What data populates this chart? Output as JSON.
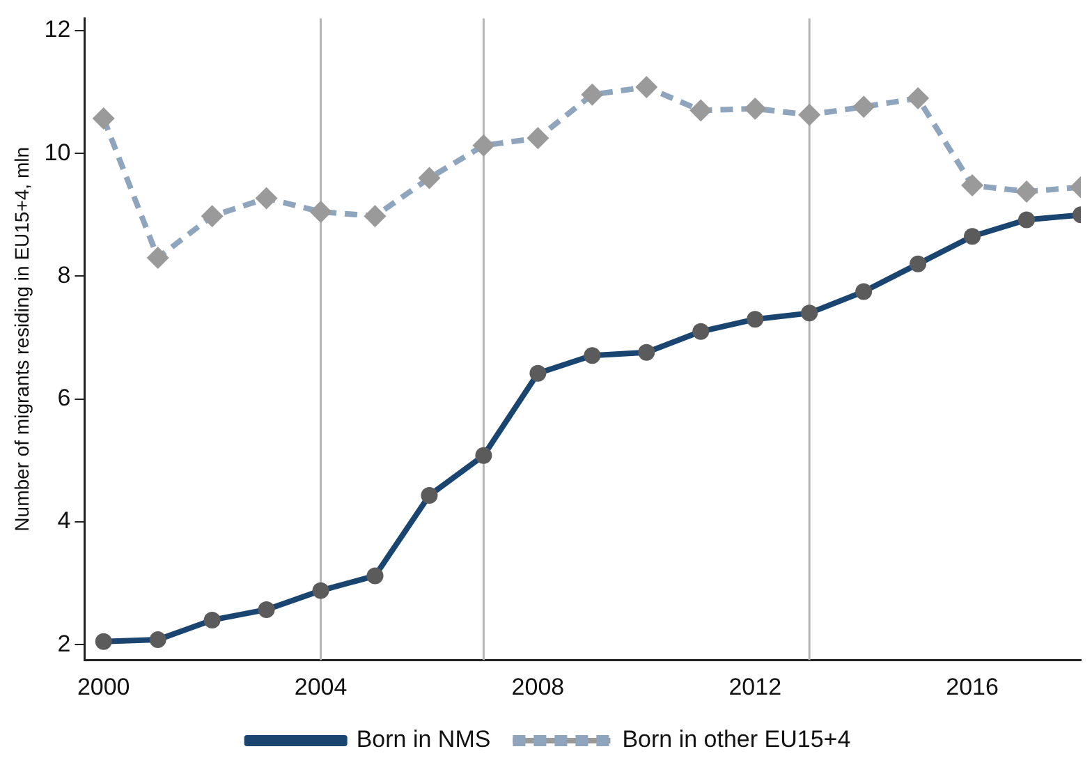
{
  "chart_data": {
    "type": "line",
    "ylabel": "Number of migrants residing in EU15+4, mln",
    "x": [
      2000,
      2001,
      2002,
      2003,
      2004,
      2005,
      2006,
      2007,
      2008,
      2009,
      2010,
      2011,
      2012,
      2013,
      2014,
      2015,
      2016,
      2017,
      2018
    ],
    "series": [
      {
        "name": "Born in NMS",
        "color": "#1a4571",
        "marker": "circle",
        "line_style": "solid",
        "values": [
          2.05,
          2.08,
          2.4,
          2.57,
          2.88,
          3.12,
          4.43,
          5.08,
          6.42,
          6.71,
          6.76,
          7.1,
          7.3,
          7.4,
          7.75,
          8.2,
          8.65,
          8.92,
          9.0
        ]
      },
      {
        "name": "Born in other EU15+4",
        "color": "#8fa5bd",
        "marker": "diamond",
        "line_style": "dashed",
        "values": [
          10.57,
          8.3,
          8.98,
          9.27,
          9.05,
          8.98,
          9.6,
          10.13,
          10.25,
          10.96,
          11.08,
          10.7,
          10.73,
          10.63,
          10.76,
          10.9,
          9.48,
          9.38,
          9.45
        ]
      }
    ],
    "xlim": [
      1999.65,
      2018
    ],
    "xticks": [
      2000,
      2004,
      2008,
      2012,
      2016
    ],
    "ylim": [
      1.75,
      12.2
    ],
    "yticks": [
      2,
      4,
      6,
      8,
      10,
      12
    ],
    "grid": false,
    "legend": "bottom",
    "ref_lines": [
      {
        "axis": "x",
        "value": 2004,
        "color": "#b4b4b4"
      },
      {
        "axis": "x",
        "value": 2007,
        "color": "#b4b4b4"
      },
      {
        "axis": "x",
        "value": 2013,
        "color": "#b4b4b4"
      }
    ]
  }
}
